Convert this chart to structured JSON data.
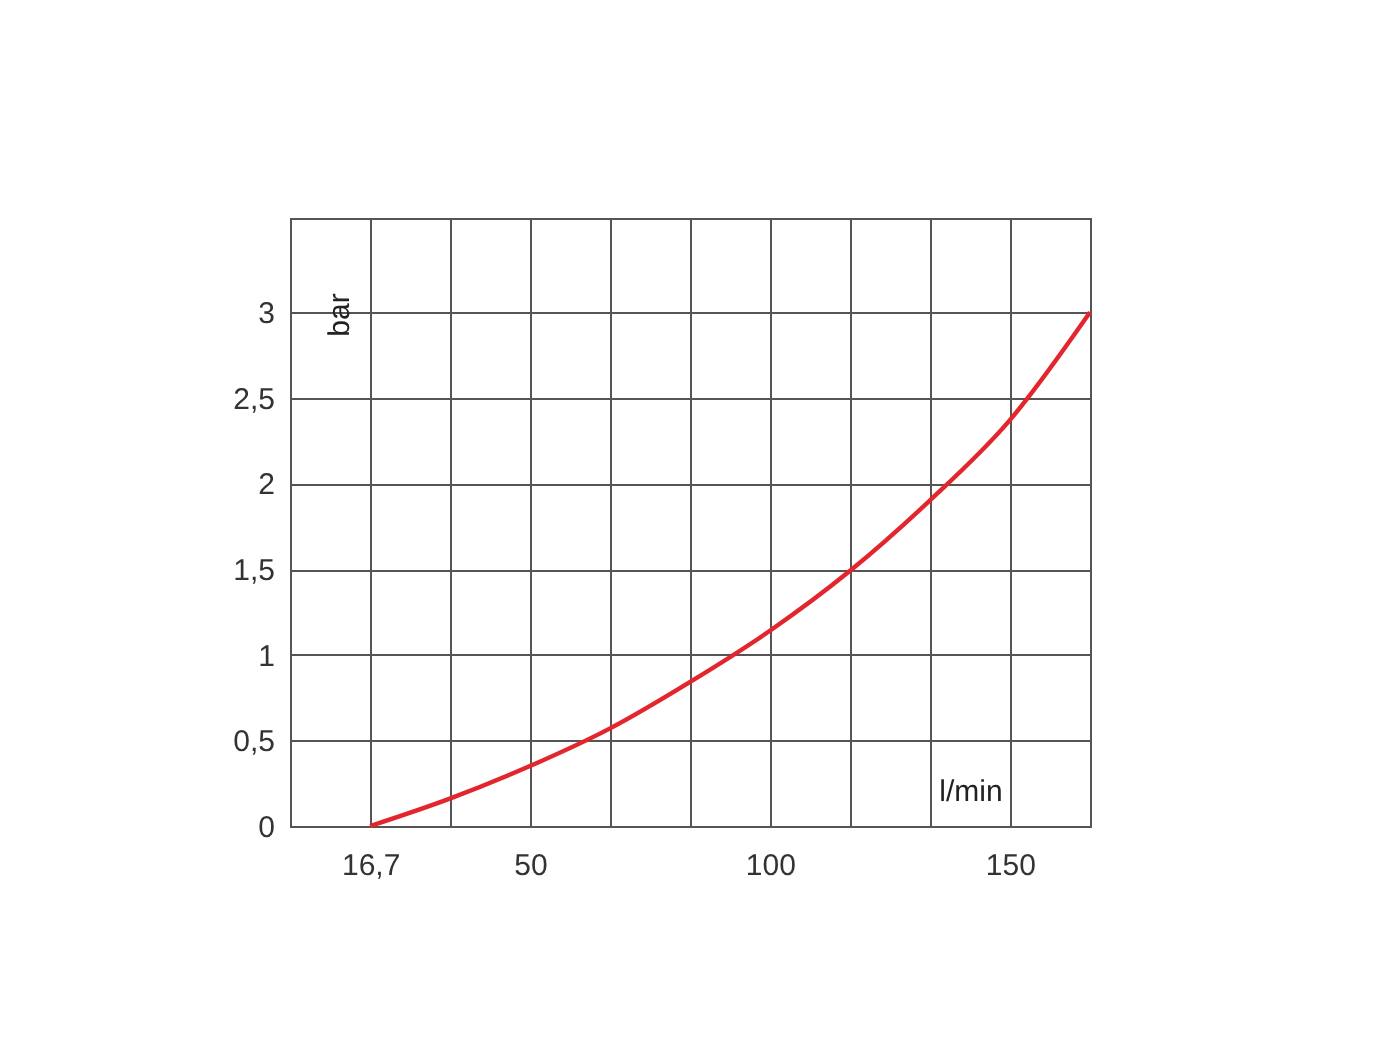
{
  "chart_data": {
    "type": "line",
    "xlabel": "l/min",
    "ylabel": "bar",
    "x": [
      16.7,
      33.3,
      50,
      66.7,
      83.3,
      100,
      116.7,
      133.3,
      150,
      166.7
    ],
    "series": [
      {
        "color": "#e3262d",
        "values": [
          0,
          0.16,
          0.35,
          0.57,
          0.84,
          1.14,
          1.49,
          1.9,
          2.37,
          3.0
        ]
      }
    ],
    "xlim": [
      0,
      166.7
    ],
    "xticks": [
      {
        "value": 16.7,
        "label": "16,7"
      },
      {
        "value": 33.3,
        "label": null
      },
      50,
      {
        "value": 66.7,
        "label": null
      },
      {
        "value": 83.3,
        "label": null
      },
      100,
      {
        "value": 116.7,
        "label": null
      },
      {
        "value": 133.3,
        "label": null
      },
      150
    ],
    "ylim": [
      0,
      3.55
    ],
    "yticks": [
      0,
      {
        "value": 0.5,
        "label": "0,5"
      },
      1,
      {
        "value": 1.5,
        "label": "1,5"
      },
      2,
      {
        "value": 2.5,
        "label": "2,5"
      },
      3
    ],
    "grid": true,
    "marker": "none",
    "line_style": "solid"
  }
}
